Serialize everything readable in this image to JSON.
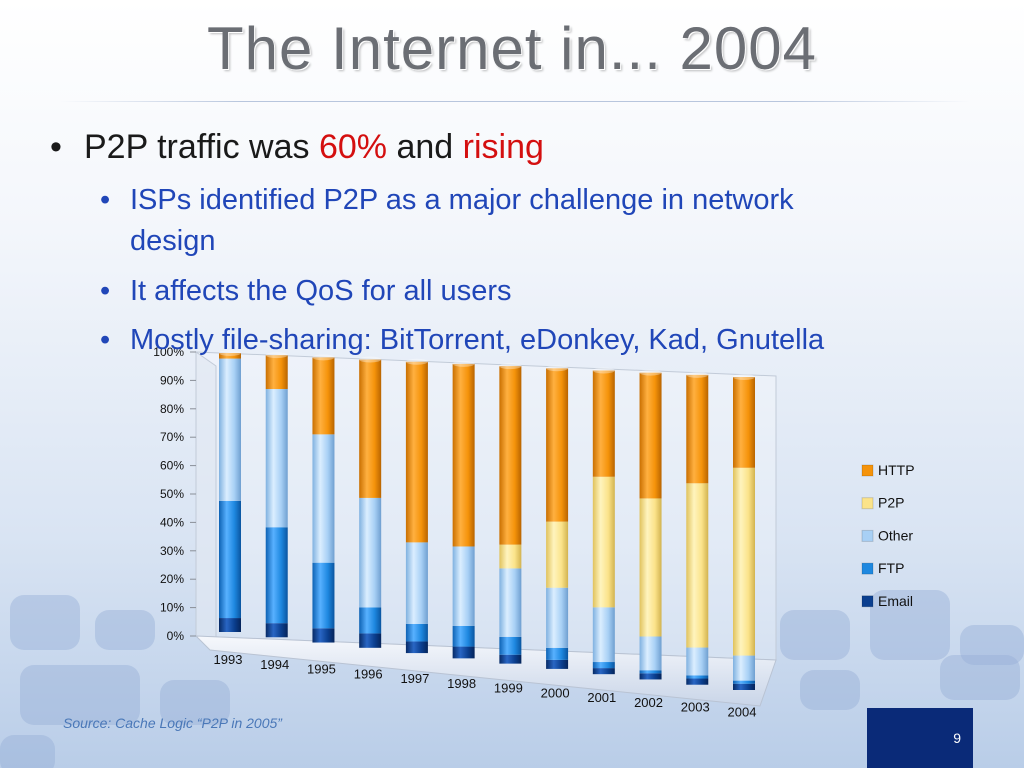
{
  "title": "The Internet in... 2004",
  "bullet1": {
    "prefix": "P2P traffic was ",
    "highlight1": "60%",
    "middle": " and ",
    "highlight2": "rising"
  },
  "subbullets": [
    "ISPs identified P2P as a major challenge in network",
    "design",
    "It affects the QoS  for all users",
    "Mostly  file-sharing: BitTorrent, eDonkey, Kad, Gnutella"
  ],
  "source": "Source: Cache Logic “P2P in 2005”",
  "slide_number": "9",
  "colors": {
    "http": "#f5930a",
    "p2p": "#fbe38a",
    "other": "#a8d0f5",
    "ftp": "#1e88e0",
    "email": "#0b3f8f"
  },
  "chart_data": {
    "type": "bar",
    "stacked": true,
    "categories": [
      "1993",
      "1994",
      "1995",
      "1996",
      "1997",
      "1998",
      "1999",
      "2000",
      "2001",
      "2002",
      "2003",
      "2004"
    ],
    "series": [
      {
        "name": "Email",
        "values": [
          5,
          5,
          5,
          5,
          4,
          4,
          3,
          3,
          2,
          2,
          2,
          2
        ]
      },
      {
        "name": "FTP",
        "values": [
          42,
          34,
          23,
          9,
          6,
          7,
          6,
          4,
          2,
          1,
          1,
          1
        ]
      },
      {
        "name": "Other",
        "values": [
          51,
          49,
          45,
          38,
          28,
          27,
          23,
          20,
          18,
          11,
          9,
          8
        ]
      },
      {
        "name": "P2P",
        "values": [
          0,
          0,
          0,
          0,
          0,
          0,
          8,
          22,
          43,
          45,
          53,
          60
        ]
      },
      {
        "name": "HTTP",
        "values": [
          2,
          12,
          27,
          48,
          62,
          62,
          60,
          51,
          35,
          41,
          35,
          29
        ]
      }
    ],
    "legend_order": [
      "HTTP",
      "P2P",
      "Other",
      "FTP",
      "Email"
    ],
    "yticks": [
      "0%",
      "10%",
      "20%",
      "30%",
      "40%",
      "50%",
      "60%",
      "70%",
      "80%",
      "90%",
      "100%"
    ],
    "ylim": [
      0,
      100
    ],
    "legend": "right"
  }
}
